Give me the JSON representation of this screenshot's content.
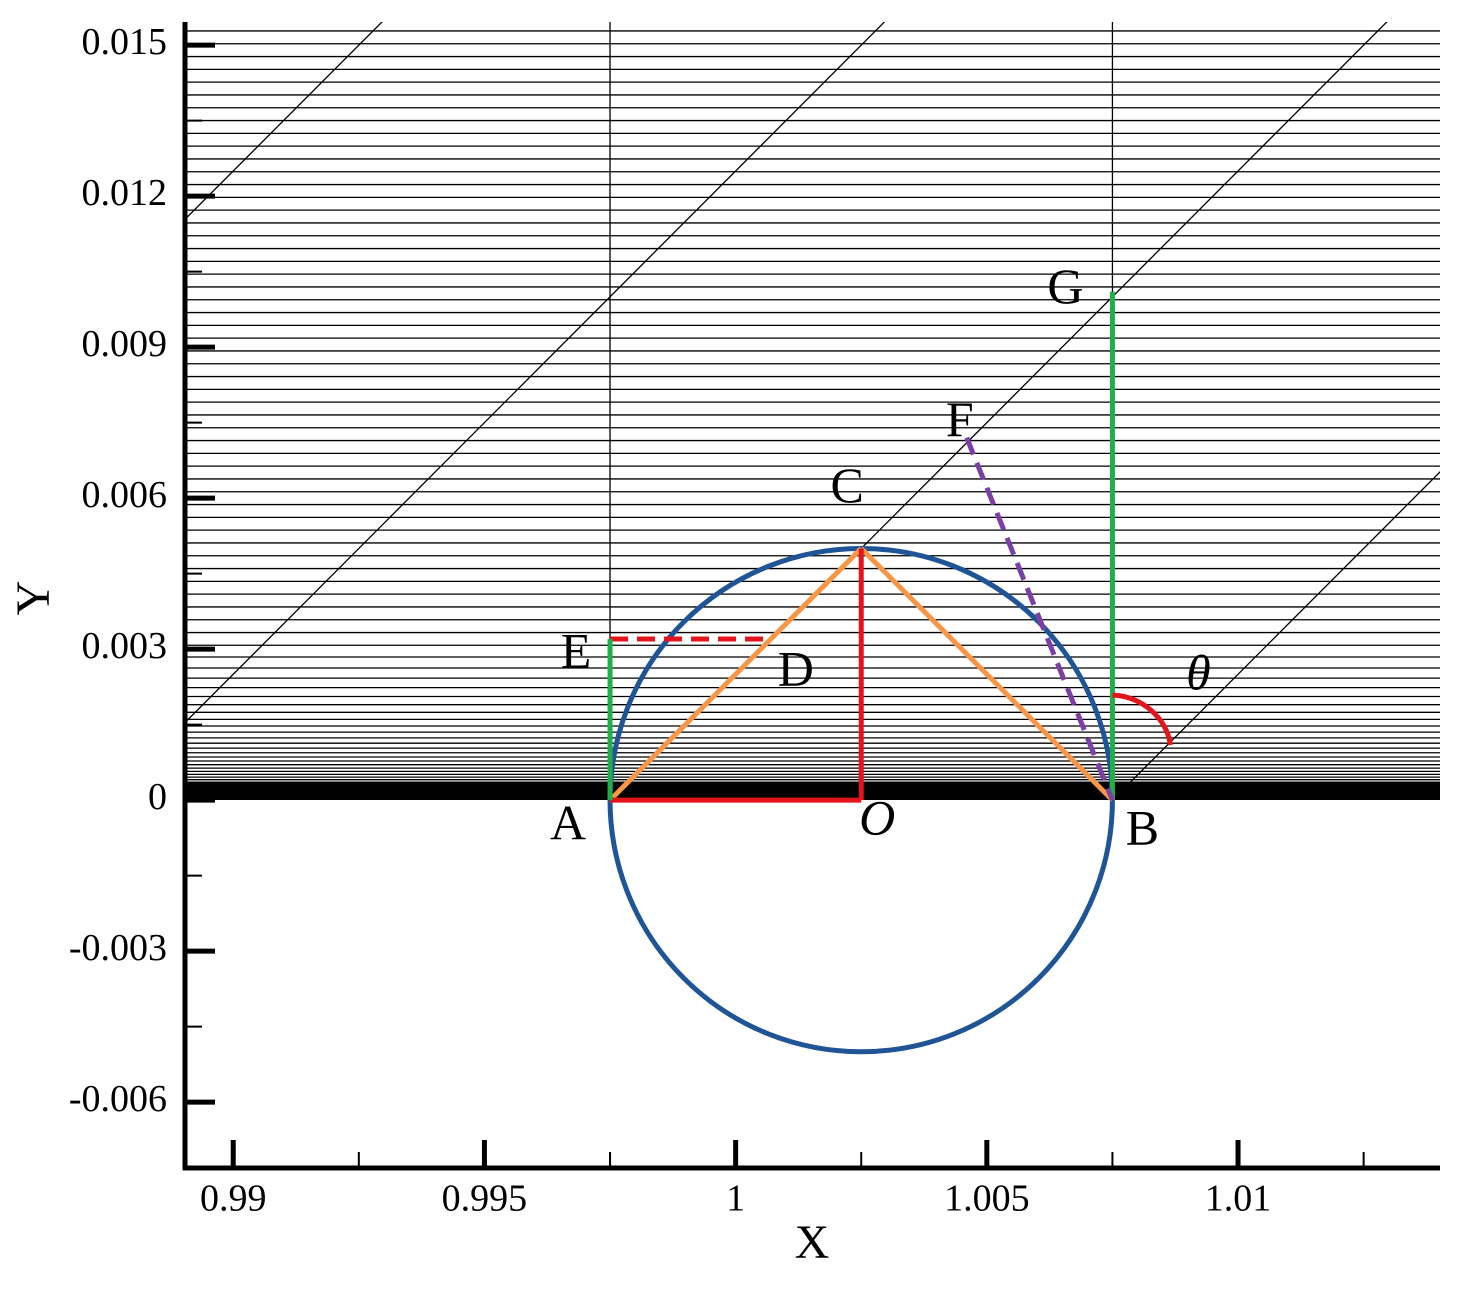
{
  "chart_data": {
    "type": "geometry",
    "xlabel": "X",
    "ylabel": "Y",
    "xlim": [
      0.98904,
      1.01402
    ],
    "ylim": [
      -0.00731,
      0.01546
    ],
    "xticks": [
      0.99,
      0.995,
      1,
      1.005,
      1.01
    ],
    "xminorticks": [
      0.9925,
      0.9975,
      1.0025,
      1.0075,
      1.0125
    ],
    "yticks": [
      -0.006,
      -0.003,
      0,
      0.003,
      0.006,
      0.009,
      0.012,
      0.015
    ],
    "yminorticks": [
      -0.0045,
      -0.0015,
      0.0015,
      0.0045,
      0.0075,
      0.0105,
      0.0135
    ],
    "points": [
      {
        "label": "A",
        "x": 0.9975,
        "y": 0
      },
      {
        "label": "B",
        "x": 1.0075,
        "y": 0
      },
      {
        "label": "C",
        "x": 1.0025,
        "y": 0.005
      },
      {
        "label": "D",
        "x": 1.0007,
        "y": 0.0032
      },
      {
        "label": "E",
        "x": 0.9975,
        "y": 0.0032
      },
      {
        "label": "F",
        "x": 1.0046,
        "y": 0.0072
      },
      {
        "label": "G",
        "x": 1.0075,
        "y": 0.0101
      },
      {
        "label": "O",
        "x": 1.0025,
        "y": 0
      }
    ],
    "circle": {
      "cx": 1.0025,
      "cy": 0,
      "r": 0.005,
      "color": "#1f5597"
    },
    "segments": [
      {
        "from": "A",
        "to": "C",
        "color": "#f79646",
        "dashed": false
      },
      {
        "from": "C",
        "to": "B",
        "color": "#f79646",
        "dashed": false
      },
      {
        "from": "A",
        "to": "O",
        "color": "#e3141b",
        "dashed": false
      },
      {
        "from": "O",
        "to": "C",
        "color": "#e3141b",
        "dashed": false
      },
      {
        "from": "E",
        "to": "D",
        "color": "#e3141b",
        "dashed": true
      },
      {
        "from": "E",
        "to": "A",
        "color": "#1fb04b",
        "dashed": false
      },
      {
        "from": "G",
        "to": "B",
        "color": "#1fb04b",
        "dashed": false
      },
      {
        "from": "F",
        "to": "B",
        "color": "#7b3fa6",
        "dashed": true
      }
    ],
    "angle_label": "θ",
    "angle_color": "#e3141b"
  }
}
